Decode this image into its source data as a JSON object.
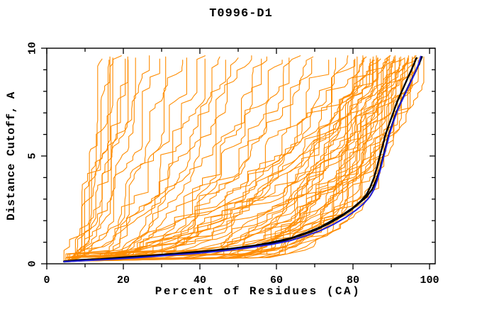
{
  "chart_data": {
    "type": "line",
    "title": "T0996-D1",
    "xlabel": "Percent of Residues (CA)",
    "ylabel": "Distance Cutoff, A",
    "xlim": [
      0,
      101.5
    ],
    "ylim": [
      0,
      10
    ],
    "grid": false,
    "legend": false,
    "x_ticks": {
      "major": [
        0,
        20,
        40,
        60,
        80,
        100
      ],
      "minor": [
        10,
        30,
        50,
        70,
        90
      ]
    },
    "y_ticks": {
      "major": [
        0,
        5,
        10
      ],
      "minor": [
        1,
        2,
        3,
        4,
        6,
        7,
        8,
        9
      ]
    },
    "colors": {
      "background": "#ffffff",
      "frame": "#000000",
      "text": "#000000",
      "model_curves": "#ff8c00",
      "reference_black": "#000000",
      "reference_blue": "#2020dd"
    },
    "reference_series": [
      {
        "name": "black-reference-1",
        "color": "#000000",
        "width": 2.4,
        "points": [
          [
            4.5,
            0.12
          ],
          [
            9,
            0.18
          ],
          [
            14,
            0.22
          ],
          [
            20,
            0.3
          ],
          [
            27,
            0.38
          ],
          [
            34,
            0.48
          ],
          [
            41,
            0.58
          ],
          [
            48,
            0.7
          ],
          [
            54,
            0.84
          ],
          [
            59,
            1.0
          ],
          [
            64,
            1.2
          ],
          [
            68,
            1.45
          ],
          [
            71.5,
            1.7
          ],
          [
            74.5,
            2.0
          ],
          [
            77.5,
            2.3
          ],
          [
            80,
            2.6
          ],
          [
            82,
            2.9
          ],
          [
            83.5,
            3.2
          ],
          [
            84.5,
            3.55
          ],
          [
            85.5,
            4.0
          ],
          [
            86.3,
            4.5
          ],
          [
            87,
            5.0
          ],
          [
            87.8,
            5.5
          ],
          [
            88.5,
            6.0
          ],
          [
            89.5,
            6.5
          ],
          [
            90.5,
            7.0
          ],
          [
            91.5,
            7.5
          ],
          [
            92.5,
            7.9
          ],
          [
            93.5,
            8.3
          ],
          [
            94.5,
            8.7
          ],
          [
            95.3,
            9.0
          ],
          [
            96,
            9.3
          ],
          [
            96.6,
            9.55
          ]
        ]
      },
      {
        "name": "black-reference-2",
        "color": "#000000",
        "width": 2.4,
        "points": [
          [
            4.5,
            0.1
          ],
          [
            10,
            0.16
          ],
          [
            16,
            0.22
          ],
          [
            23,
            0.3
          ],
          [
            30,
            0.4
          ],
          [
            38,
            0.5
          ],
          [
            45,
            0.62
          ],
          [
            51,
            0.75
          ],
          [
            57,
            0.9
          ],
          [
            62,
            1.08
          ],
          [
            66,
            1.3
          ],
          [
            70,
            1.55
          ],
          [
            73.5,
            1.85
          ],
          [
            76.5,
            2.15
          ],
          [
            79.5,
            2.5
          ],
          [
            81.5,
            2.8
          ],
          [
            83.5,
            3.1
          ],
          [
            85,
            3.45
          ],
          [
            86,
            3.85
          ],
          [
            87,
            4.35
          ],
          [
            87.8,
            4.9
          ],
          [
            88.6,
            5.45
          ],
          [
            89.4,
            6.0
          ],
          [
            90.4,
            6.55
          ],
          [
            91.5,
            7.1
          ],
          [
            92.8,
            7.6
          ],
          [
            94,
            8.05
          ],
          [
            95.2,
            8.5
          ],
          [
            96.3,
            8.9
          ],
          [
            97.2,
            9.25
          ],
          [
            98,
            9.6
          ]
        ]
      },
      {
        "name": "blue-reference",
        "color": "#2020dd",
        "width": 2,
        "points": [
          [
            4.5,
            0.1
          ],
          [
            10.5,
            0.15
          ],
          [
            17,
            0.21
          ],
          [
            24,
            0.29
          ],
          [
            31.5,
            0.39
          ],
          [
            39.5,
            0.49
          ],
          [
            46.5,
            0.61
          ],
          [
            52.5,
            0.74
          ],
          [
            58.5,
            0.89
          ],
          [
            63.5,
            1.07
          ],
          [
            67.5,
            1.29
          ],
          [
            71.5,
            1.54
          ],
          [
            75,
            1.84
          ],
          [
            78,
            2.14
          ],
          [
            80.8,
            2.49
          ],
          [
            82.8,
            2.79
          ],
          [
            84.3,
            3.09
          ],
          [
            85.5,
            3.45
          ],
          [
            86.4,
            3.9
          ],
          [
            87.2,
            4.4
          ],
          [
            88,
            4.95
          ],
          [
            88.8,
            5.5
          ],
          [
            89.6,
            6.05
          ],
          [
            90.6,
            6.6
          ],
          [
            91.7,
            7.15
          ],
          [
            93,
            7.65
          ],
          [
            94.2,
            8.1
          ],
          [
            95.4,
            8.55
          ],
          [
            96.4,
            8.95
          ],
          [
            97.2,
            9.3
          ],
          [
            97.7,
            9.62
          ]
        ]
      }
    ],
    "model_series": {
      "color": "#ff8c00",
      "width": 1.1,
      "start_y": 0.12,
      "params_format": [
        "x_start",
        "x_end",
        "shape_q",
        "seed",
        "y_top"
      ],
      "curves": [
        [
          4.5,
          13,
          0.55,
          101,
          9.5
        ],
        [
          5,
          15,
          0.6,
          102,
          9.6
        ],
        [
          4.8,
          16,
          0.5,
          103,
          9.45
        ],
        [
          5.2,
          17,
          0.65,
          104,
          9.55
        ],
        [
          5,
          18,
          0.55,
          105,
          9.65
        ],
        [
          5.5,
          19,
          0.6,
          106,
          9.5
        ],
        [
          5,
          20,
          0.5,
          107,
          9.6
        ],
        [
          5.5,
          22,
          0.55,
          108,
          9.45
        ],
        [
          6,
          24,
          0.6,
          109,
          9.55
        ],
        [
          5,
          26,
          0.5,
          110,
          9.65
        ],
        [
          5.5,
          28,
          0.55,
          111,
          9.5
        ],
        [
          6,
          31,
          0.45,
          112,
          9.6
        ],
        [
          5,
          34,
          0.45,
          113,
          9.45
        ],
        [
          5.5,
          37,
          0.5,
          114,
          9.55
        ],
        [
          5,
          40,
          0.4,
          115,
          9.65
        ],
        [
          6,
          42,
          0.45,
          116,
          9.5
        ],
        [
          5,
          45,
          0.35,
          117,
          9.6
        ],
        [
          5.5,
          47,
          0.5,
          118,
          9.45
        ],
        [
          6,
          50,
          0.4,
          119,
          9.55
        ],
        [
          5,
          52,
          0.45,
          120,
          9.65
        ],
        [
          5.5,
          55,
          0.35,
          121,
          9.5
        ],
        [
          6,
          57,
          0.4,
          122,
          9.6
        ],
        [
          5,
          60,
          0.45,
          123,
          9.45
        ],
        [
          5.5,
          63,
          0.35,
          124,
          9.55
        ],
        [
          6,
          65,
          0.4,
          125,
          9.65
        ],
        [
          5,
          68,
          0.3,
          126,
          9.5
        ],
        [
          5.5,
          70,
          0.45,
          127,
          9.6
        ],
        [
          6,
          73,
          0.35,
          128,
          9.45
        ],
        [
          5,
          76,
          0.3,
          129,
          9.55
        ],
        [
          5.5,
          78,
          0.2,
          130,
          9.65
        ],
        [
          6,
          79,
          0.45,
          131,
          9.5
        ],
        [
          5,
          80,
          0.18,
          132,
          9.6
        ],
        [
          5.5,
          81,
          0.25,
          133,
          9.45
        ],
        [
          6,
          82,
          0.5,
          134,
          9.55
        ],
        [
          5,
          82,
          0.16,
          135,
          9.65
        ],
        [
          5.5,
          83,
          0.22,
          136,
          9.5
        ],
        [
          6,
          84,
          0.4,
          137,
          9.6
        ],
        [
          5,
          84,
          0.15,
          138,
          9.45
        ],
        [
          5.5,
          85,
          0.2,
          139,
          9.55
        ],
        [
          6,
          85,
          0.35,
          140,
          9.65
        ],
        [
          5,
          86,
          0.14,
          141,
          9.5
        ],
        [
          5.5,
          86,
          0.25,
          142,
          9.6
        ],
        [
          6,
          87,
          0.45,
          143,
          9.45
        ],
        [
          5,
          87,
          0.16,
          144,
          9.55
        ],
        [
          5.5,
          88,
          0.2,
          145,
          9.65
        ],
        [
          6,
          88,
          0.55,
          146,
          9.5
        ],
        [
          5,
          88,
          0.13,
          147,
          9.6
        ],
        [
          5.5,
          89,
          0.18,
          148,
          9.45
        ],
        [
          6,
          89,
          0.3,
          149,
          9.55
        ],
        [
          5,
          90,
          0.15,
          150,
          9.65
        ],
        [
          5.5,
          90,
          0.22,
          151,
          9.5
        ],
        [
          6,
          90,
          0.4,
          152,
          9.6
        ],
        [
          5,
          91,
          0.14,
          153,
          9.45
        ],
        [
          5.5,
          91,
          0.2,
          154,
          9.55
        ],
        [
          6,
          91,
          0.5,
          155,
          9.65
        ],
        [
          5,
          92,
          0.13,
          156,
          9.5
        ],
        [
          5.5,
          92,
          0.18,
          157,
          9.6
        ],
        [
          6,
          92,
          0.35,
          158,
          9.45
        ],
        [
          5,
          93,
          0.15,
          159,
          9.55
        ],
        [
          5.5,
          93,
          0.22,
          160,
          9.65
        ],
        [
          6,
          93,
          0.45,
          161,
          9.5
        ],
        [
          5,
          94,
          0.13,
          162,
          9.6
        ],
        [
          5.5,
          94,
          0.18,
          163,
          9.45
        ],
        [
          6,
          94,
          0.3,
          164,
          9.55
        ],
        [
          5,
          95,
          0.14,
          165,
          9.65
        ],
        [
          5.5,
          95,
          0.25,
          166,
          9.5
        ],
        [
          6,
          96,
          0.16,
          167,
          9.6
        ],
        [
          5,
          96,
          0.2,
          168,
          9.45
        ],
        [
          5.5,
          96,
          0.4,
          169,
          9.55
        ],
        [
          6,
          97,
          0.14,
          170,
          9.65
        ],
        [
          5,
          97,
          0.22,
          171,
          9.5
        ],
        [
          5.5,
          98,
          0.17,
          172,
          9.6
        ]
      ]
    }
  }
}
